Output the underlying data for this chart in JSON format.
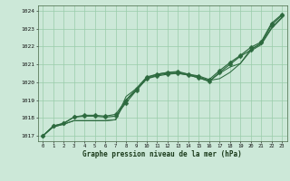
{
  "xlabel": "Graphe pression niveau de la mer (hPa)",
  "xlim_min": -0.5,
  "xlim_max": 23.5,
  "ylim_min": 1016.7,
  "ylim_max": 1024.3,
  "yticks": [
    1017,
    1018,
    1019,
    1020,
    1021,
    1022,
    1023,
    1024
  ],
  "xticks": [
    0,
    1,
    2,
    3,
    4,
    5,
    6,
    7,
    8,
    9,
    10,
    11,
    12,
    13,
    14,
    15,
    16,
    17,
    18,
    19,
    20,
    21,
    22,
    23
  ],
  "bg_color": "#cce8d8",
  "grid_color": "#99ccaa",
  "line_color": "#2d6a3f",
  "line1_x": [
    0,
    1,
    2,
    3,
    4,
    5,
    6,
    7,
    8,
    9,
    10,
    11,
    12,
    13,
    14,
    15,
    16,
    17,
    18,
    19,
    20,
    21,
    22,
    23
  ],
  "line1_y": [
    1017.0,
    1017.5,
    1017.65,
    1017.85,
    1017.85,
    1017.85,
    1017.85,
    1017.9,
    1019.2,
    1019.65,
    1020.25,
    1020.45,
    1020.55,
    1020.55,
    1020.45,
    1020.3,
    1020.1,
    1020.2,
    1020.55,
    1021.05,
    1021.85,
    1022.15,
    1023.05,
    1023.65
  ],
  "line2_x": [
    0,
    1,
    2,
    3,
    4,
    5,
    6,
    7,
    8,
    9,
    10,
    11,
    12,
    13,
    14,
    15,
    16,
    17,
    18,
    19,
    20,
    21,
    22,
    23
  ],
  "line2_y": [
    1017.0,
    1017.5,
    1017.65,
    1017.85,
    1017.85,
    1017.85,
    1017.85,
    1017.9,
    1019.0,
    1019.55,
    1020.2,
    1020.4,
    1020.5,
    1020.5,
    1020.4,
    1020.25,
    1020.05,
    1020.5,
    1020.85,
    1021.05,
    1021.75,
    1022.1,
    1023.0,
    1023.6
  ],
  "line3_x": [
    0,
    1,
    2,
    3,
    4,
    5,
    6,
    7,
    8,
    9,
    10,
    11,
    12,
    13,
    14,
    15,
    16,
    17,
    18,
    19,
    20,
    21,
    22,
    23
  ],
  "line3_y": [
    1017.0,
    1017.55,
    1017.7,
    1018.05,
    1018.1,
    1018.1,
    1018.05,
    1018.1,
    1018.85,
    1019.55,
    1020.2,
    1020.35,
    1020.45,
    1020.5,
    1020.4,
    1020.25,
    1020.05,
    1020.55,
    1021.0,
    1021.45,
    1021.8,
    1022.2,
    1023.2,
    1023.75
  ],
  "line4_x": [
    0,
    1,
    2,
    3,
    4,
    5,
    6,
    7,
    8,
    9,
    10,
    11,
    12,
    13,
    14,
    15,
    16,
    17,
    18,
    19,
    20,
    21,
    22,
    23
  ],
  "line4_y": [
    1017.0,
    1017.55,
    1017.7,
    1018.05,
    1018.15,
    1018.15,
    1018.1,
    1018.2,
    1019.0,
    1019.65,
    1020.3,
    1020.45,
    1020.55,
    1020.6,
    1020.45,
    1020.35,
    1020.15,
    1020.65,
    1021.1,
    1021.5,
    1021.95,
    1022.25,
    1023.3,
    1023.8
  ],
  "marker_size": 2.5,
  "lw_plain": 0.75,
  "lw_marker": 0.85
}
